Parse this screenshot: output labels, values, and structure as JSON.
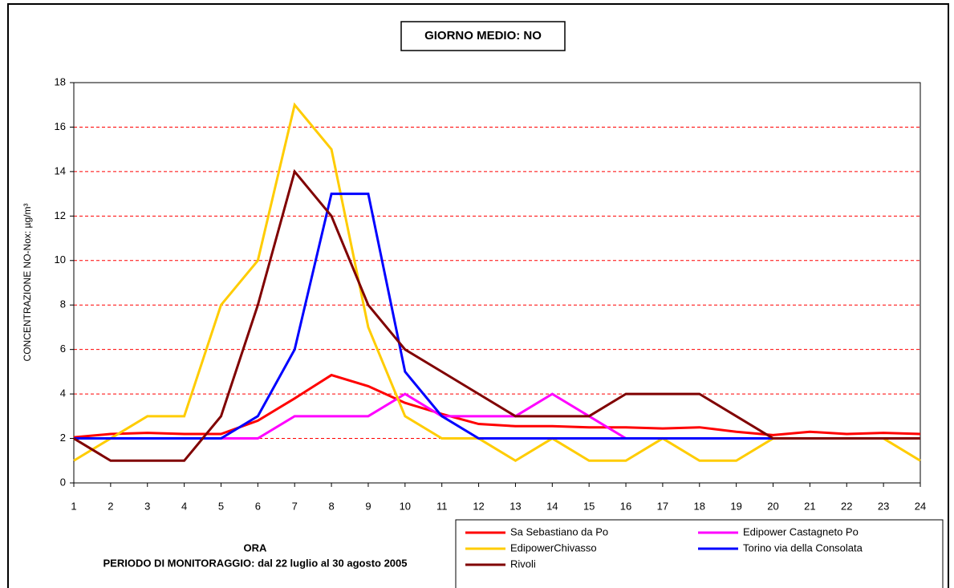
{
  "chart_data": {
    "type": "line",
    "title": "GIORNO MEDIO: NO",
    "x_label": "ORA",
    "subtitle": "PERIODO DI MONITORAGGIO: dal 22 luglio al 30 agosto 2005",
    "y_label": "CONCENTRAZIONE NO-Nox: µg/m³",
    "x": [
      1,
      2,
      3,
      4,
      5,
      6,
      7,
      8,
      9,
      10,
      11,
      12,
      13,
      14,
      15,
      16,
      17,
      18,
      19,
      20,
      21,
      22,
      23,
      24
    ],
    "xlim": [
      1,
      24
    ],
    "xticks": [
      1,
      2,
      3,
      4,
      5,
      6,
      7,
      8,
      9,
      10,
      11,
      12,
      13,
      14,
      15,
      16,
      17,
      18,
      19,
      20,
      21,
      22,
      23,
      24
    ],
    "ylim": [
      0,
      18
    ],
    "yticks": [
      0,
      2,
      4,
      6,
      8,
      10,
      12,
      14,
      16,
      18
    ],
    "grid": true,
    "series": [
      {
        "name": "Sa Sebastiano da Po",
        "color": "#ff0000",
        "values": [
          2.05,
          2.2,
          2.25,
          2.2,
          2.2,
          2.8,
          3.8,
          4.85,
          4.35,
          3.6,
          3.1,
          2.65,
          2.55,
          2.55,
          2.5,
          2.5,
          2.45,
          2.5,
          2.3,
          2.15,
          2.3,
          2.2,
          2.25,
          2.2
        ]
      },
      {
        "name": "Edipower Castagneto Po",
        "color": "#ff00ff",
        "values": [
          2,
          2,
          2,
          2,
          2,
          2,
          3,
          3,
          3,
          4,
          3,
          3,
          3,
          4,
          3,
          2,
          2,
          2,
          2,
          2,
          2,
          2,
          2,
          2
        ]
      },
      {
        "name": "EdipowerChivasso",
        "color": "#ffcc00",
        "values": [
          1,
          2,
          3,
          3,
          8,
          10,
          17,
          15,
          7,
          3,
          2,
          2,
          1,
          2,
          1,
          1,
          2,
          1,
          1,
          2,
          2,
          2,
          2,
          1
        ]
      },
      {
        "name": "Torino via della Consolata",
        "color": "#0000ff",
        "values": [
          2,
          2,
          2,
          2,
          2,
          3,
          6,
          13,
          13,
          5,
          3,
          2,
          2,
          2,
          2,
          2,
          2,
          2,
          2,
          2,
          2,
          2,
          2,
          2
        ]
      },
      {
        "name": "Rivoli",
        "color": "#800000",
        "values": [
          2,
          1,
          1,
          1,
          3,
          8,
          14,
          12,
          8,
          6,
          5,
          4,
          3,
          3,
          3,
          4,
          4,
          4,
          3,
          2,
          2,
          2,
          2,
          2
        ]
      }
    ]
  }
}
